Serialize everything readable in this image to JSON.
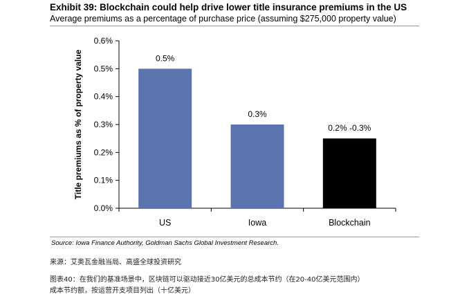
{
  "header": {
    "title": "Exhibit 39: Blockchain could help drive lower title insurance premiums in the US",
    "subtitle": "Average premiums as a percentage of purchase price (assuming $275,000 property value)"
  },
  "chart_data": {
    "type": "bar",
    "categories": [
      "US",
      "Iowa",
      "Blockchain"
    ],
    "values": [
      0.5,
      0.3,
      0.25
    ],
    "data_labels": [
      "0.5%",
      "0.3%",
      "0.2% -0.3%"
    ],
    "colors": [
      "#5b74ad",
      "#5b74ad",
      "#000000"
    ],
    "ylabel": "Title premiums as % of property value",
    "xlabel": "",
    "ylim": [
      0,
      0.6
    ],
    "yticks": [
      0,
      0.1,
      0.2,
      0.3,
      0.4,
      0.5,
      0.6
    ],
    "ytick_labels": [
      "0.0%",
      "0.1%",
      "0.2%",
      "0.3%",
      "0.4%",
      "0.5%",
      "0.6%"
    ],
    "grid": false,
    "legend": "none"
  },
  "footer": {
    "source": "Source: Iowa Finance Authority, Goldman Sachs Global Investment Research.",
    "cn_source": "来源：艾奥瓦金融当局、高盛全球投资研究",
    "cn_caption_line1": "图表40：在我们的基准场景中，区块链可以驱动接近30亿美元的总成本节约（在20-40亿美元范围内）",
    "cn_caption_line2": "成本节约额，按运营开支项目列出（十亿美元）"
  }
}
